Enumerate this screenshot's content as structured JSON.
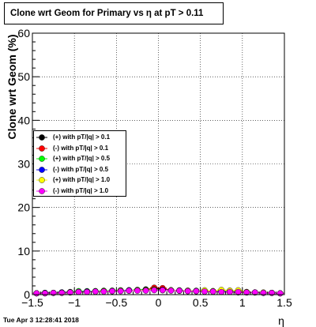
{
  "title": "Clone wrt Geom for Primary vs   η at pT > 0.11",
  "footer": "Tue Apr  3 12:28:41 2018",
  "chart_data": {
    "type": "scatter",
    "title": "Clone wrt Geom for Primary vs   η at pT > 0.11",
    "xlabel": "η",
    "ylabel": "Clone wrt Geom (%)",
    "xlim": [
      -1.5,
      1.5
    ],
    "ylim": [
      0,
      60
    ],
    "xticks": [
      -1.5,
      -1,
      -0.5,
      0,
      0.5,
      1,
      1.5
    ],
    "xtick_labels": [
      "−1.5",
      "−1",
      "−0.5",
      "0",
      "0.5",
      "1",
      "1.5"
    ],
    "yticks": [
      0,
      10,
      20,
      30,
      40,
      50,
      60
    ],
    "ytick_labels": [
      "0",
      "10",
      "20",
      "30",
      "40",
      "50",
      "60"
    ],
    "grid": true,
    "legend_position": "middle-left",
    "x": [
      -1.45,
      -1.35,
      -1.25,
      -1.15,
      -1.05,
      -0.95,
      -0.85,
      -0.75,
      -0.65,
      -0.55,
      -0.45,
      -0.35,
      -0.25,
      -0.15,
      -0.05,
      0.05,
      0.15,
      0.25,
      0.35,
      0.45,
      0.55,
      0.65,
      0.75,
      0.85,
      0.95,
      1.05,
      1.15,
      1.25,
      1.35,
      1.45
    ],
    "series": [
      {
        "name": "(+) with pT/|q| > 0.1",
        "color": "#000000",
        "values": [
          0.3,
          0.4,
          0.4,
          0.5,
          0.6,
          0.7,
          0.7,
          0.8,
          0.8,
          0.9,
          0.9,
          1.0,
          1.0,
          1.2,
          1.4,
          1.3,
          1.0,
          0.9,
          0.9,
          0.8,
          0.8,
          0.7,
          0.7,
          0.6,
          0.6,
          0.5,
          0.5,
          0.4,
          0.4,
          0.3
        ]
      },
      {
        "name": "(-) with pT/|q| > 0.1",
        "color": "#ff0000",
        "values": [
          0.3,
          0.4,
          0.4,
          0.5,
          0.5,
          0.6,
          0.7,
          0.7,
          0.8,
          0.8,
          0.9,
          0.9,
          1.0,
          1.1,
          1.6,
          1.5,
          1.0,
          0.9,
          0.8,
          0.8,
          0.7,
          0.7,
          0.6,
          0.6,
          0.5,
          0.5,
          0.5,
          0.4,
          0.4,
          0.3
        ]
      },
      {
        "name": "(+) with pT/|q| > 0.5",
        "color": "#00ff00",
        "values": [
          0.3,
          0.3,
          0.4,
          0.5,
          0.6,
          0.8,
          0.8,
          0.8,
          0.9,
          0.9,
          1.0,
          1.0,
          1.1,
          1.1,
          1.2,
          1.1,
          1.0,
          1.0,
          0.9,
          0.9,
          0.9,
          0.8,
          0.8,
          0.9,
          0.7,
          0.6,
          0.5,
          0.4,
          0.4,
          0.3
        ]
      },
      {
        "name": "(-) with pT/|q| > 0.5",
        "color": "#0000ff",
        "values": [
          0.3,
          0.4,
          0.4,
          0.5,
          0.5,
          0.6,
          0.7,
          0.7,
          0.8,
          0.8,
          0.9,
          1.0,
          1.0,
          1.0,
          1.1,
          1.1,
          1.0,
          0.9,
          0.9,
          0.8,
          0.8,
          0.8,
          0.7,
          0.7,
          0.6,
          0.6,
          0.5,
          0.4,
          0.4,
          0.3
        ]
      },
      {
        "name": "(+) with pT/|q| > 1.0",
        "color": "#ffff00",
        "values": [
          0.3,
          0.3,
          0.4,
          0.4,
          0.5,
          0.6,
          0.6,
          0.7,
          0.8,
          0.8,
          0.9,
          0.9,
          1.0,
          1.0,
          1.1,
          1.0,
          1.0,
          0.9,
          0.9,
          0.8,
          1.0,
          0.8,
          1.1,
          0.9,
          1.0,
          0.6,
          0.5,
          0.5,
          0.4,
          0.3
        ]
      },
      {
        "name": "(-) with pT/|q| > 1.0",
        "color": "#ff00ff",
        "values": [
          0.3,
          0.3,
          0.4,
          0.4,
          0.5,
          0.6,
          0.6,
          0.7,
          0.7,
          0.8,
          0.8,
          0.9,
          0.9,
          0.9,
          1.0,
          1.0,
          0.9,
          0.9,
          0.8,
          0.8,
          0.7,
          0.7,
          0.6,
          0.6,
          0.6,
          0.5,
          0.5,
          0.4,
          0.4,
          0.3
        ]
      }
    ]
  }
}
